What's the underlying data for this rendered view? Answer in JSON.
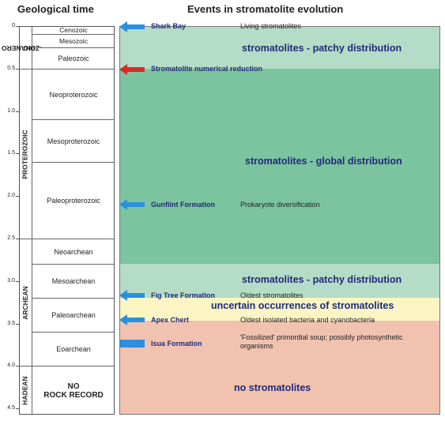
{
  "headers": {
    "left": "Geological time",
    "right": "Events in stromatolite evolution"
  },
  "axis_ticks": [
    "0",
    "0.5",
    "1.0",
    "1.5",
    "2.0",
    "2.5",
    "3.0",
    "3.5",
    "4.0",
    "4.5"
  ],
  "eons": [
    {
      "label_line1": "PHANERO",
      "label_line2": "-ZOIC"
    },
    {
      "label_line1": "PROTEROZOIC",
      "label_line2": ""
    },
    {
      "label_line1": "ARCHEAN",
      "label_line2": ""
    },
    {
      "label_line1": "HADEAN",
      "label_line2": ""
    }
  ],
  "eras": [
    {
      "label": "Cenozoic"
    },
    {
      "label": "Mesozoic"
    },
    {
      "label": "Paleozoic"
    },
    {
      "label": "Neoproterozoic"
    },
    {
      "label": "Mesoproterozoic"
    },
    {
      "label": "Paleoproterozoic"
    },
    {
      "label": "Neoarchean"
    },
    {
      "label": "Mesoarchean"
    },
    {
      "label": "Paleoarchean"
    },
    {
      "label": "Eoarchean"
    },
    {
      "label_line1": "NO",
      "label_line2": "ROCK RECORD"
    }
  ],
  "bands": [
    {
      "label": "stromatolites - patchy distribution",
      "color": "#b5dcc6"
    },
    {
      "label": "stromatolites - global distribution",
      "color": "#7cc49f"
    },
    {
      "label": "stromatolites - patchy distribution",
      "color": "#b5dcc6"
    },
    {
      "label": "uncertain occurrences of stromatolites",
      "color": "#fbf5c3"
    },
    {
      "label": "no stromatolites",
      "color": "#f2c2b0"
    }
  ],
  "events": [
    {
      "label": "Shark Bay",
      "description": "Living stromatolites",
      "arrow_color": "#2a8fde"
    },
    {
      "label": "Stromatolite numerical reduction",
      "description": "",
      "arrow_color": "#d92a22"
    },
    {
      "label": "Gunflint Formation",
      "description": "Prokaryote diversification",
      "arrow_color": "#2a8fde"
    },
    {
      "label": "Fig Tree Formation",
      "description": "Oldest stromatolites",
      "arrow_color": "#2a8fde"
    },
    {
      "label": "Apex Chert",
      "description": "Oldest isolated bacteria and cyanobacteria",
      "arrow_color": "#2a8fde"
    },
    {
      "label": "Isua Formation",
      "description": "'Fossilized' primordial soup; possibly photosynthetic organisms",
      "arrow_color": "#2a8fde"
    }
  ]
}
